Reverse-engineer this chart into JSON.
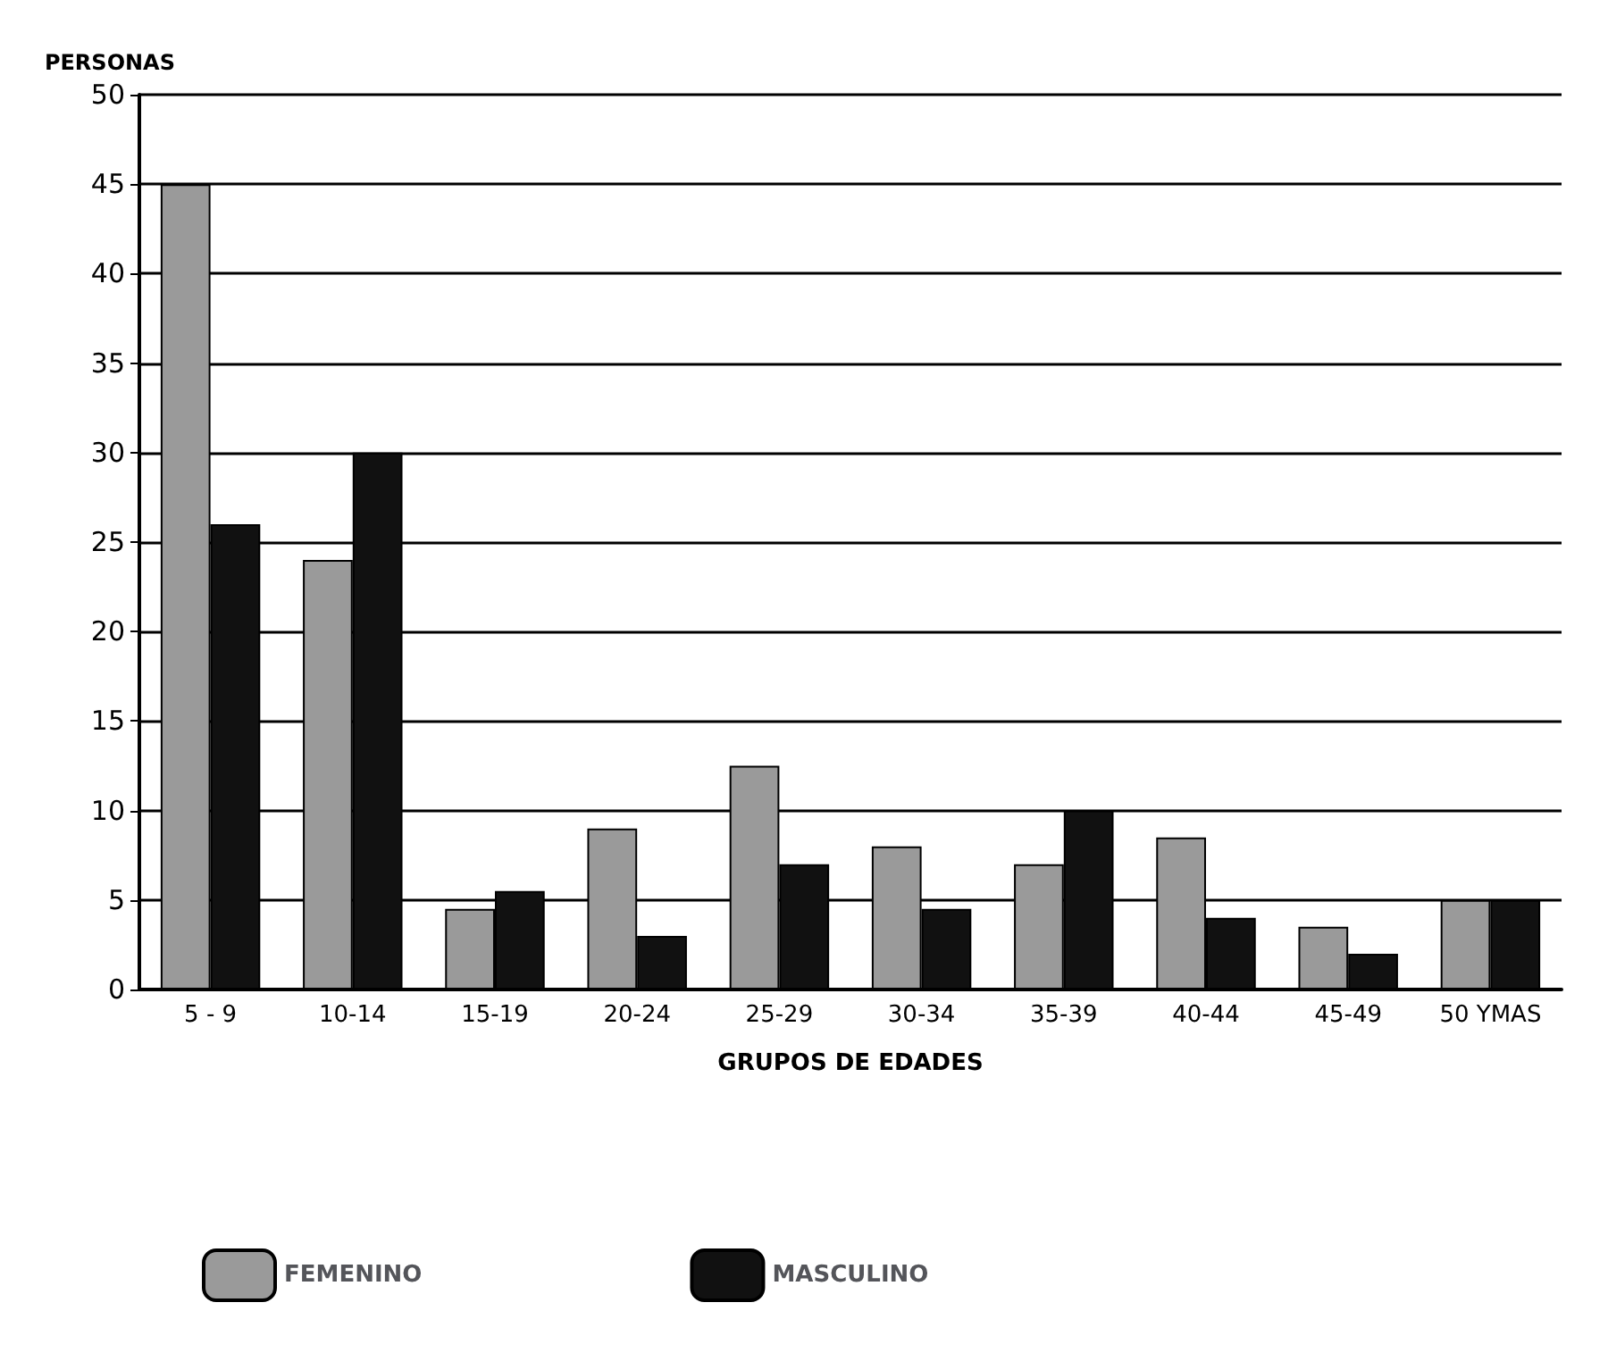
{
  "chart_data": {
    "type": "bar",
    "ylabel": "PERSONAS",
    "xlabel": "GRUPOS DE EDADES",
    "categories": [
      "5 - 9",
      "10-14",
      "15-19",
      "20-24",
      "25-29",
      "30-34",
      "35-39",
      "40-44",
      "45-49",
      "50 YMAS"
    ],
    "series": [
      {
        "name": "FEMENINO",
        "color": "#9a9a9a",
        "values": [
          45,
          24,
          4.5,
          9,
          12.5,
          8,
          7,
          8.5,
          3.5,
          5
        ]
      },
      {
        "name": "MASCULINO",
        "color": "#111111",
        "values": [
          26,
          30,
          5.5,
          3,
          7,
          4.5,
          10,
          4,
          2,
          5
        ]
      }
    ],
    "ylim": [
      0,
      50
    ],
    "yticks": [
      0,
      5,
      10,
      15,
      20,
      25,
      30,
      35,
      40,
      45,
      50
    ],
    "grid": "y",
    "legend": "bottom left"
  }
}
